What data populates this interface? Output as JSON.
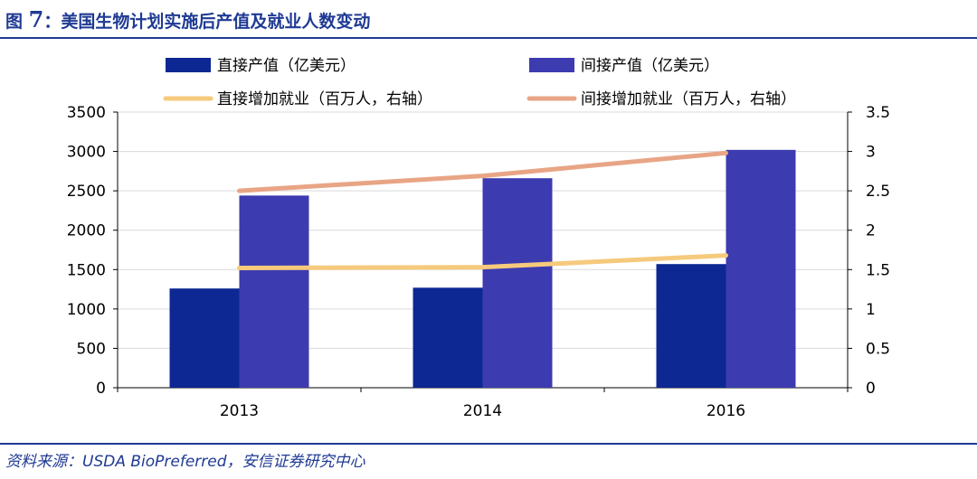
{
  "figure": {
    "label": "图",
    "number": "7",
    "separator": "：",
    "title": "美国生物计划实施后产值及就业人数变动"
  },
  "source": {
    "prefix": "资料来源：",
    "latin": "USDA BioPreferred",
    "suffix": "，安信证券研究中心"
  },
  "colors": {
    "brand": "#1f3a93",
    "direct_output": "#0d2893",
    "indirect_output": "#3d3bb0",
    "direct_jobs": "#f6ca7c",
    "indirect_jobs": "#e8a585"
  },
  "chart_data": {
    "type": "bar",
    "categories": [
      "2013",
      "2014",
      "2016"
    ],
    "series": [
      {
        "name": "直接产值（亿美元）",
        "kind": "bar",
        "axis": "left",
        "color": "#0d2893",
        "values": [
          1260,
          1270,
          1570
        ]
      },
      {
        "name": "间接产值（亿美元）",
        "kind": "bar",
        "axis": "left",
        "color": "#3d3bb0",
        "values": [
          2440,
          2660,
          3020
        ]
      },
      {
        "name": "直接增加就业（百万人，右轴）",
        "kind": "line",
        "axis": "right",
        "color": "#f6ca7c",
        "values": [
          1.52,
          1.53,
          1.68
        ]
      },
      {
        "name": "间接增加就业（百万人，右轴）",
        "kind": "line",
        "axis": "right",
        "color": "#e8a585",
        "values": [
          2.5,
          2.69,
          2.98
        ]
      }
    ],
    "y_left": {
      "min": 0,
      "max": 3500,
      "ticks": [
        "3500",
        "3000",
        "2500",
        "2000",
        "1500",
        "1000",
        "500",
        "0"
      ]
    },
    "y_right": {
      "min": 0,
      "max": 3.5,
      "ticks": [
        "3.5",
        "3",
        "2.5",
        "2",
        "1.5",
        "1",
        "0.5",
        "0"
      ]
    },
    "grid": true,
    "legend": "top"
  }
}
